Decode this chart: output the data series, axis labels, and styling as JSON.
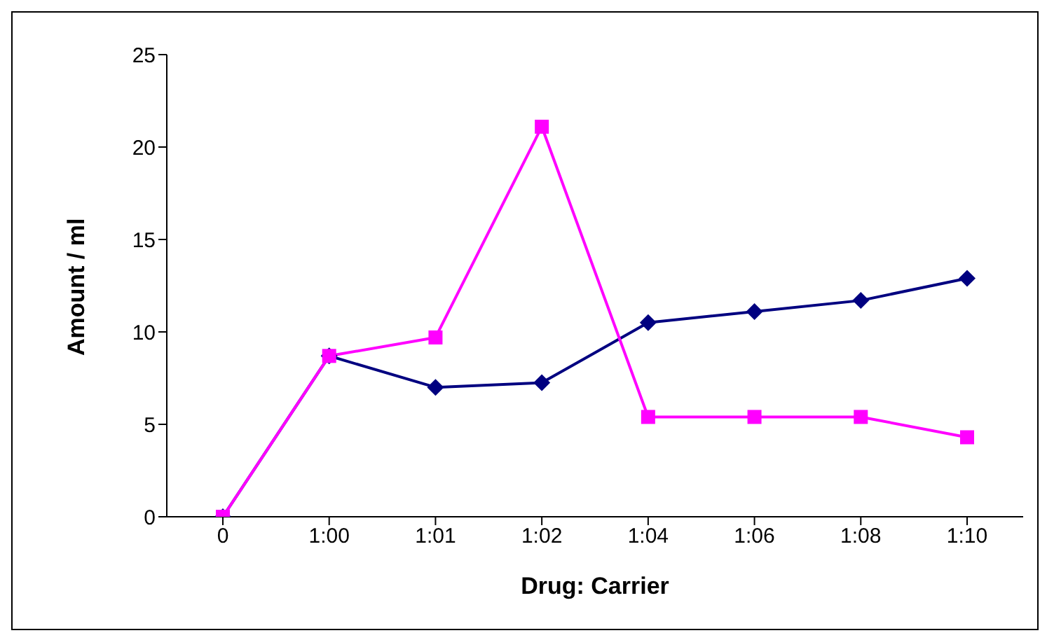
{
  "chart_data": {
    "type": "line",
    "xlabel": "Drug: Carrier",
    "ylabel": "Amount / ml",
    "categories": [
      "0",
      "1:00",
      "1:01",
      "1:02",
      "1:04",
      "1:06",
      "1:08",
      "1:10"
    ],
    "series": [
      {
        "color": "#000080",
        "marker": "diamond",
        "values": [
          0,
          8.7,
          7.0,
          7.25,
          10.5,
          11.1,
          11.7,
          12.9
        ]
      },
      {
        "color": "#ff00ff",
        "marker": "square",
        "values": [
          0,
          8.7,
          9.7,
          21.1,
          5.4,
          5.4,
          5.4,
          4.3
        ]
      }
    ],
    "ylim": [
      0,
      25
    ],
    "yticks": [
      0,
      5,
      10,
      15,
      20,
      25
    ],
    "grid": false,
    "legend": false
  }
}
